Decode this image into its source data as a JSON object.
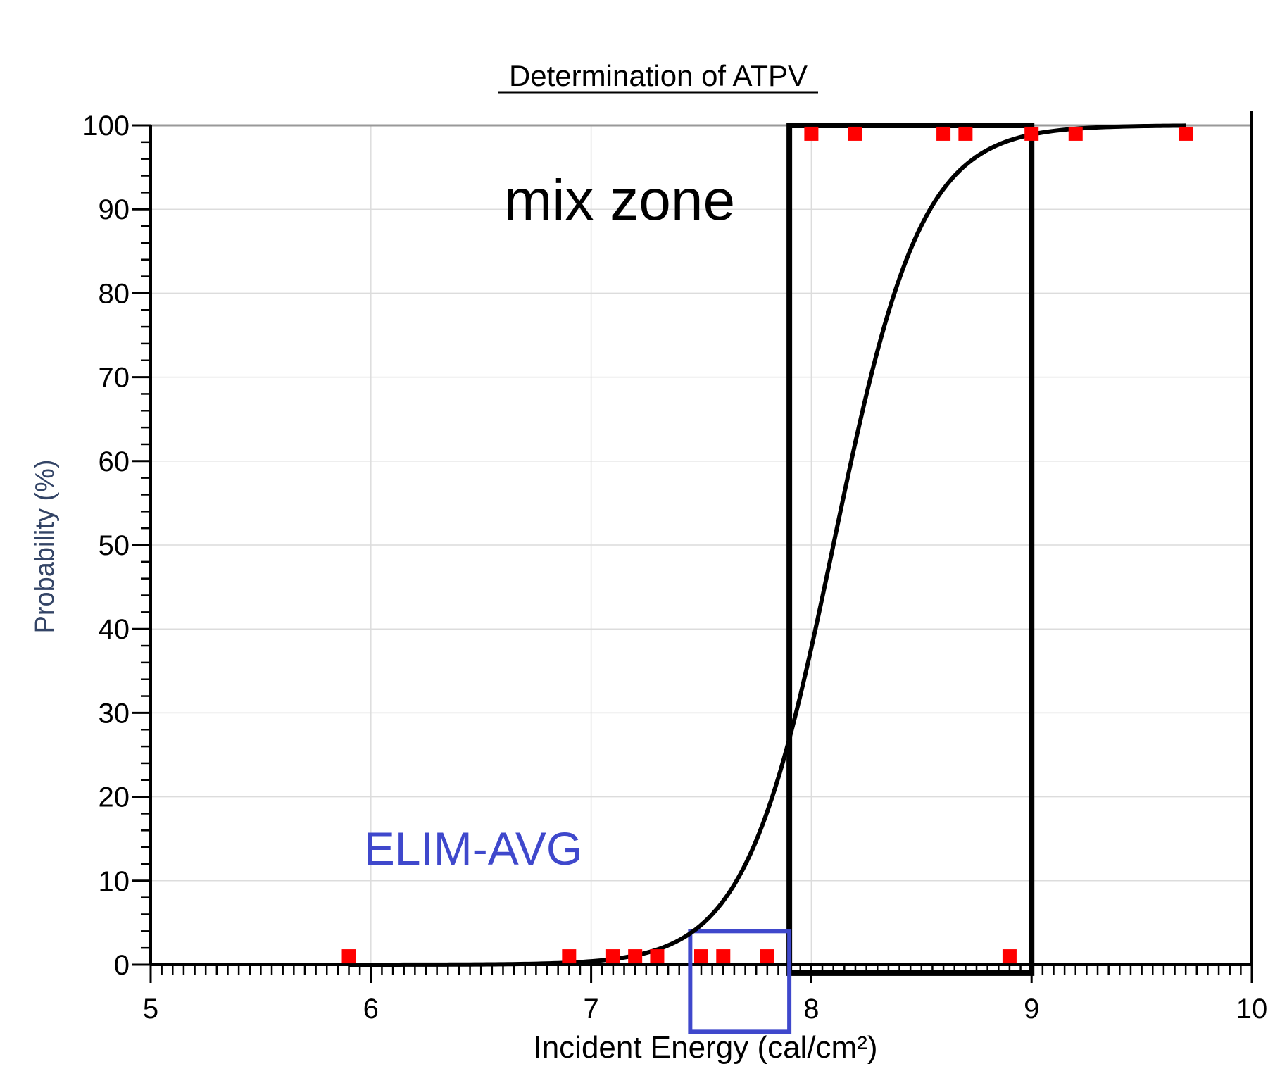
{
  "chart_data": {
    "type": "scatter",
    "title": "Determination of ATPV",
    "xlabel": "Incident Energy (cal/cm²)",
    "ylabel": "Probability (%)",
    "xlim": [
      5,
      10
    ],
    "ylim": [
      0,
      100
    ],
    "xticks": [
      "5",
      "6",
      "7",
      "8",
      "9",
      "10"
    ],
    "yticks": [
      "0",
      "10",
      "20",
      "30",
      "40",
      "50",
      "60",
      "70",
      "80",
      "90",
      "100"
    ],
    "grid": true,
    "series": [
      {
        "kind": "points",
        "color": "#ff0000",
        "marker": "square",
        "points": [
          {
            "x": 5.9,
            "y": 1
          },
          {
            "x": 6.9,
            "y": 1
          },
          {
            "x": 7.1,
            "y": 1
          },
          {
            "x": 7.2,
            "y": 1
          },
          {
            "x": 7.3,
            "y": 1
          },
          {
            "x": 7.5,
            "y": 1
          },
          {
            "x": 7.6,
            "y": 1
          },
          {
            "x": 7.8,
            "y": 1
          },
          {
            "x": 8.9,
            "y": 1
          },
          {
            "x": 8.0,
            "y": 99
          },
          {
            "x": 8.2,
            "y": 99
          },
          {
            "x": 8.6,
            "y": 99
          },
          {
            "x": 8.7,
            "y": 99
          },
          {
            "x": 9.0,
            "y": 99
          },
          {
            "x": 9.2,
            "y": 99
          },
          {
            "x": 9.7,
            "y": 99
          }
        ]
      },
      {
        "kind": "logistic-fit",
        "color": "#000000",
        "x_range": [
          5.9,
          9.7
        ],
        "midpoint_x": 8.1,
        "scale_x": 0.2
      }
    ],
    "annotations": [
      {
        "text": "mix zone",
        "color": "#000000"
      },
      {
        "text": "ELIM-AVG",
        "color": "#3f48cc"
      }
    ],
    "regions": [
      {
        "name": "mix-zone",
        "x": [
          7.9,
          9.0
        ],
        "y": [
          -1,
          100
        ],
        "color": "#000000"
      },
      {
        "name": "elim-avg",
        "x": [
          7.45,
          7.9
        ],
        "y": [
          -8,
          4
        ],
        "color": "#3f48cc"
      }
    ]
  }
}
